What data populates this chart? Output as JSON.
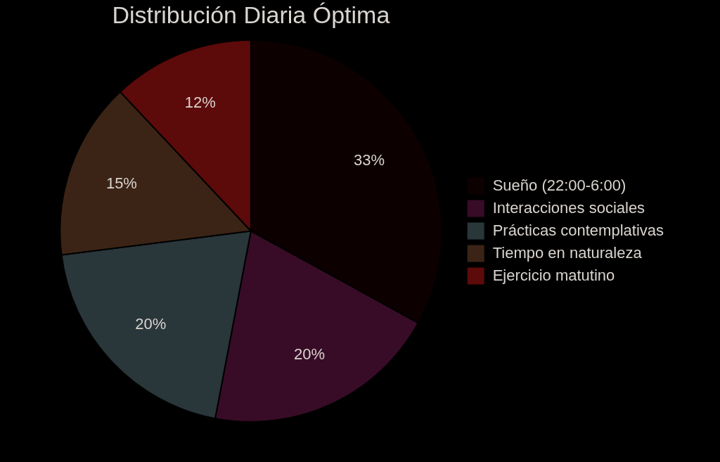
{
  "chart_data": {
    "type": "pie",
    "title": "Distribución Diaria Óptima",
    "categories": [
      "Sueño (22:00-6:00)",
      "Interacciones sociales",
      "Prácticas contemplativas",
      "Tiempo en naturaleza",
      "Ejercicio matutino"
    ],
    "values": [
      33,
      20,
      20,
      15,
      12
    ],
    "colors": [
      "#0d0000",
      "#380c26",
      "#29363a",
      "#3b2416",
      "#5c0a0a"
    ],
    "value_labels": [
      "33%",
      "20%",
      "20%",
      "15%",
      "12%"
    ],
    "legend": "right"
  }
}
